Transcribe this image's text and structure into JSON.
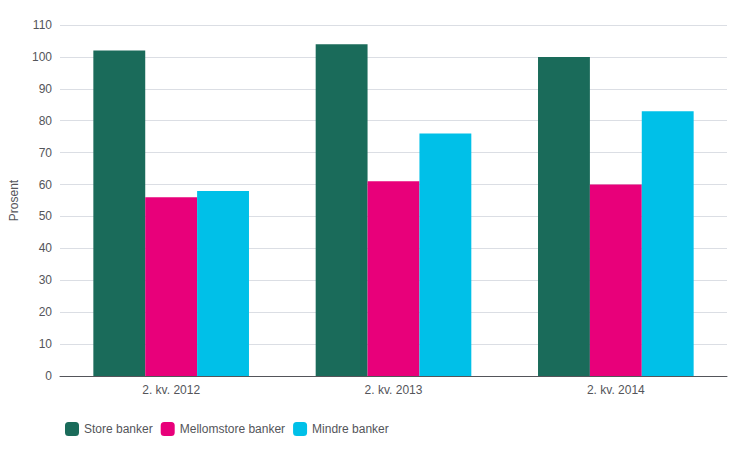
{
  "chart_data": {
    "type": "bar",
    "categories": [
      "2. kv. 2012",
      "2. kv. 2013",
      "2. kv. 2014"
    ],
    "series": [
      {
        "name": "Store banker",
        "color": "#1a6b5a",
        "values": [
          102,
          104,
          100
        ]
      },
      {
        "name": "Mellomstore banker",
        "color": "#e8007a",
        "values": [
          56,
          61,
          60
        ]
      },
      {
        "name": "Mindre banker",
        "color": "#00c0e8",
        "values": [
          58,
          76,
          83
        ]
      }
    ],
    "ylabel": "Prosent",
    "ylim": [
      0,
      110
    ],
    "yticks": [
      0,
      10,
      20,
      30,
      40,
      50,
      60,
      70,
      80,
      90,
      100,
      110
    ],
    "grid": true,
    "legend": "bottom"
  }
}
